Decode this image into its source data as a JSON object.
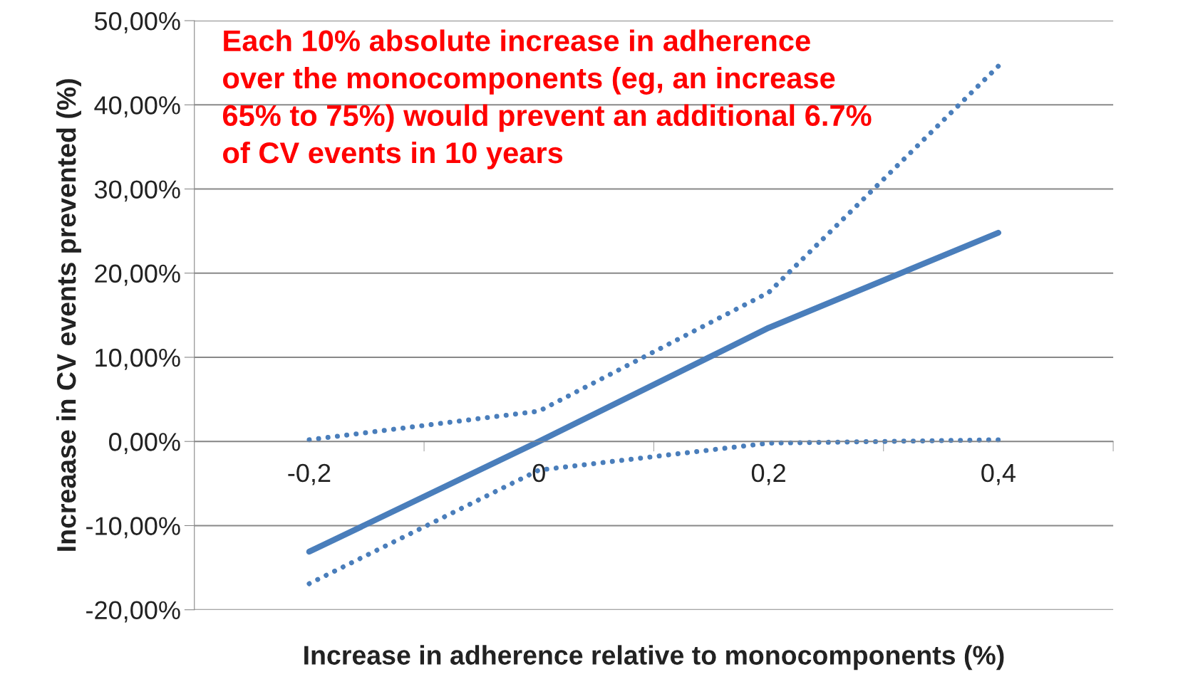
{
  "chart_data": {
    "type": "line",
    "xlabel": "Increase in adherence relative to monocomponents (%)",
    "ylabel": "Increaase in CV events prevented (%)",
    "categories": [
      "-0,2",
      "0",
      "0,2",
      "0,4"
    ],
    "series": [
      {
        "color": "#4a7ebb",
        "line_style": "solid",
        "values": [
          -13.1,
          0,
          13.5,
          24.8
        ]
      },
      {
        "color": "#4a7ebb",
        "line_style": "dotted",
        "values": [
          0.2,
          3.6,
          17.7,
          44.6
        ]
      },
      {
        "color": "#4a7ebb",
        "line_style": "dotted",
        "values": [
          -16.9,
          -3.4,
          -0.2,
          0.2
        ]
      }
    ],
    "ylim": [
      -20,
      50
    ],
    "yticks": [
      {
        "value": -20,
        "label": "-20,00%"
      },
      {
        "value": -10,
        "label": "-10,00%"
      },
      {
        "value": 0,
        "label": "0,00%"
      },
      {
        "value": 10,
        "label": "10,00%"
      },
      {
        "value": 20,
        "label": "20,00%"
      },
      {
        "value": 30,
        "label": "30,00%"
      },
      {
        "value": 40,
        "label": "40,00%"
      },
      {
        "value": 50,
        "label": "50,00%"
      }
    ],
    "grid": "y",
    "marker": "none",
    "annotations": [
      "Each 10% absolute increase in adherence\nover the monocomponents (eg, an increase\n65% to 75%) would prevent an additional 6.7%\nof CV events in 10 years"
    ]
  }
}
